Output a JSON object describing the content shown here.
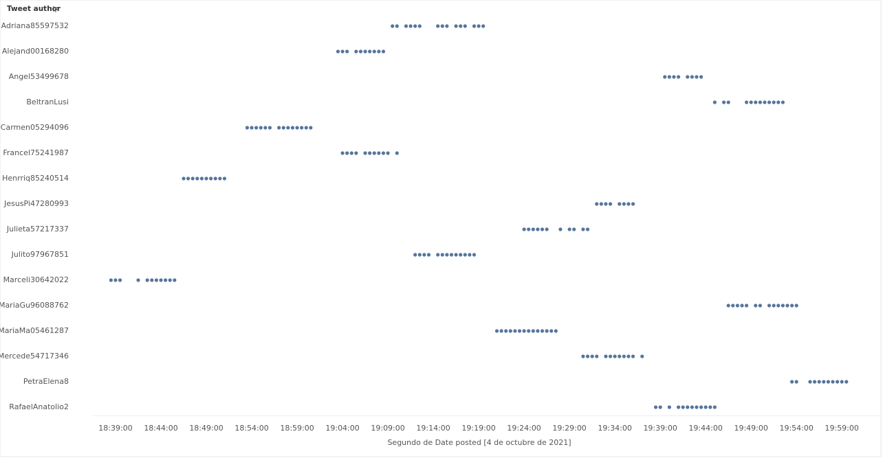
{
  "chart_data": {
    "type": "strip",
    "ylabel": "Tweet author",
    "xlabel": "Segundo de Date posted [4 de octubre de 2021]",
    "color": "#56759b",
    "xlim": [
      "18:36:30",
      "20:03:00"
    ],
    "xticks": [
      "18:39:00",
      "18:44:00",
      "18:49:00",
      "18:54:00",
      "18:59:00",
      "19:04:00",
      "19:09:00",
      "19:14:00",
      "19:19:00",
      "19:24:00",
      "19:29:00",
      "19:34:00",
      "19:39:00",
      "19:44:00",
      "19:49:00",
      "19:54:00",
      "19:59:00"
    ],
    "categories": [
      "Adriana85597532",
      "Alejand00168280",
      "Angel53499678",
      "BeltranLusi",
      "Carmen05294096",
      "Francel75241987",
      "Henrriq85240514",
      "JesusPi47280993",
      "Julieta57217337",
      "Julito97967851",
      "Marceli30642022",
      "MariaGu96088762",
      "MariaMa05461287",
      "Mercede54717346",
      "PetraElena8",
      "RafaelAnatolio2"
    ],
    "values": [
      [
        "19:09:30",
        "19:10:00",
        "19:11:00",
        "19:11:30",
        "19:12:00",
        "19:12:30",
        "19:14:30",
        "19:15:00",
        "19:15:30",
        "19:16:30",
        "19:17:00",
        "19:17:30",
        "19:18:30",
        "19:19:00",
        "19:19:30"
      ],
      [
        "19:03:30",
        "19:04:00",
        "19:04:30",
        "19:05:30",
        "19:06:00",
        "19:06:30",
        "19:07:00",
        "19:07:30",
        "19:08:00",
        "19:08:30"
      ],
      [
        "19:39:30",
        "19:40:00",
        "19:40:30",
        "19:41:00",
        "19:42:00",
        "19:42:30",
        "19:43:00",
        "19:43:30"
      ],
      [
        "19:45:00",
        "19:46:00",
        "19:46:30",
        "19:48:30",
        "19:49:00",
        "19:49:30",
        "19:50:00",
        "19:50:30",
        "19:51:00",
        "19:51:30",
        "19:52:00",
        "19:52:30"
      ],
      [
        "18:53:30",
        "18:54:00",
        "18:54:30",
        "18:55:00",
        "18:55:30",
        "18:56:00",
        "18:57:00",
        "18:57:30",
        "18:58:00",
        "18:58:30",
        "18:59:00",
        "18:59:30",
        "19:00:00",
        "19:00:30"
      ],
      [
        "19:04:00",
        "19:04:30",
        "19:05:00",
        "19:05:30",
        "19:06:30",
        "19:07:00",
        "19:07:30",
        "19:08:00",
        "19:08:30",
        "19:09:00",
        "19:10:00"
      ],
      [
        "18:46:30",
        "18:47:00",
        "18:47:30",
        "18:48:00",
        "18:48:30",
        "18:49:00",
        "18:49:30",
        "18:50:00",
        "18:50:30",
        "18:51:00"
      ],
      [
        "19:32:00",
        "19:32:30",
        "19:33:00",
        "19:33:30",
        "19:34:30",
        "19:35:00",
        "19:35:30",
        "19:36:00"
      ],
      [
        "19:24:00",
        "19:24:30",
        "19:25:00",
        "19:25:30",
        "19:26:00",
        "19:26:30",
        "19:28:00",
        "19:29:00",
        "19:29:30",
        "19:30:30",
        "19:31:00"
      ],
      [
        "19:12:00",
        "19:12:30",
        "19:13:00",
        "19:13:30",
        "19:14:30",
        "19:15:00",
        "19:15:30",
        "19:16:00",
        "19:16:30",
        "19:17:00",
        "19:17:30",
        "19:18:00",
        "19:18:30"
      ],
      [
        "18:38:30",
        "18:39:00",
        "18:39:30",
        "18:41:30",
        "18:42:30",
        "18:43:00",
        "18:43:30",
        "18:44:00",
        "18:44:30",
        "18:45:00",
        "18:45:30"
      ],
      [
        "19:46:30",
        "19:47:00",
        "19:47:30",
        "19:48:00",
        "19:48:30",
        "19:49:30",
        "19:50:00",
        "19:51:00",
        "19:51:30",
        "19:52:00",
        "19:52:30",
        "19:53:00",
        "19:53:30",
        "19:54:00"
      ],
      [
        "19:21:00",
        "19:21:30",
        "19:22:00",
        "19:22:30",
        "19:23:00",
        "19:23:30",
        "19:24:00",
        "19:24:30",
        "19:25:00",
        "19:25:30",
        "19:26:00",
        "19:26:30",
        "19:27:00",
        "19:27:30"
      ],
      [
        "19:30:30",
        "19:31:00",
        "19:31:30",
        "19:32:00",
        "19:33:00",
        "19:33:30",
        "19:34:00",
        "19:34:30",
        "19:35:00",
        "19:35:30",
        "19:36:00",
        "19:37:00"
      ],
      [
        "19:53:30",
        "19:54:00",
        "19:55:30",
        "19:56:00",
        "19:56:30",
        "19:57:00",
        "19:57:30",
        "19:58:00",
        "19:58:30",
        "19:59:00",
        "19:59:30"
      ],
      [
        "19:38:30",
        "19:39:00",
        "19:40:00",
        "19:41:00",
        "19:41:30",
        "19:42:00",
        "19:42:30",
        "19:43:00",
        "19:43:30",
        "19:44:00",
        "19:44:30",
        "19:45:00"
      ]
    ]
  }
}
